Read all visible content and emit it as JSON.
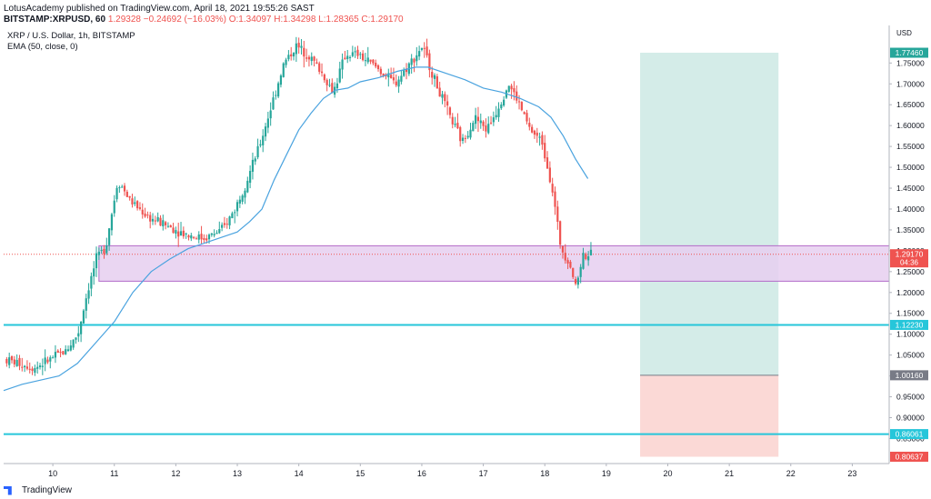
{
  "header": {
    "publisher_line": "LotusAcademy published on TradingView.com, April 18, 2021 19:55:26 SAST",
    "symbol": "BITSTAMP:XRPUSD, 60",
    "last": "1.29328",
    "change": "−0.24692 (−16.03%)",
    "ohlc": "O:1.34097 H:1.34298 L:1.28365 C:1.29170"
  },
  "legend": {
    "title": "XRP / U.S. Dollar, 1h, BITSTAMP",
    "indicator": "EMA (50, close, 0)"
  },
  "footer": {
    "brand": "TradingView"
  },
  "colors": {
    "up": "#26a69a",
    "down": "#ef5350",
    "ema": "#4aa3df",
    "support_line": "#26c6da",
    "zone_fill": "#e6cff0",
    "zone_border": "#b36bc8",
    "target_fill": "#d4ece8",
    "stop_fill": "#fbd9d6"
  },
  "chart_data": {
    "type": "candlestick",
    "title": "XRP / U.S. Dollar, 1h, BITSTAMP",
    "currency": "USD",
    "x_ticks": [
      "10",
      "11",
      "12",
      "13",
      "14",
      "15",
      "16",
      "17",
      "18",
      "19",
      "20",
      "21",
      "22",
      "23"
    ],
    "y_ticks": [
      "1.75000",
      "1.70000",
      "1.65000",
      "1.60000",
      "1.55000",
      "1.50000",
      "1.45000",
      "1.40000",
      "1.35000",
      "1.30000",
      "1.25000",
      "1.20000",
      "1.15000",
      "1.10000",
      "1.05000",
      "1.00000",
      "0.95000",
      "0.90000",
      "0.85000"
    ],
    "ylim": [
      0.79,
      1.84
    ],
    "xlim_days": [
      9.2,
      23.6
    ],
    "price_path": [
      [
        9.25,
        1.04
      ],
      [
        9.5,
        1.03
      ],
      [
        9.75,
        1.02
      ],
      [
        10.0,
        1.04
      ],
      [
        10.25,
        1.06
      ],
      [
        10.45,
        1.1
      ],
      [
        10.6,
        1.2
      ],
      [
        10.75,
        1.28
      ],
      [
        10.9,
        1.31
      ],
      [
        11.1,
        1.47
      ],
      [
        11.3,
        1.42
      ],
      [
        11.6,
        1.38
      ],
      [
        11.9,
        1.36
      ],
      [
        12.2,
        1.34
      ],
      [
        12.5,
        1.33
      ],
      [
        12.8,
        1.35
      ],
      [
        13.0,
        1.4
      ],
      [
        13.2,
        1.47
      ],
      [
        13.4,
        1.55
      ],
      [
        13.6,
        1.65
      ],
      [
        13.8,
        1.75
      ],
      [
        14.0,
        1.79
      ],
      [
        14.2,
        1.77
      ],
      [
        14.4,
        1.73
      ],
      [
        14.6,
        1.68
      ],
      [
        14.8,
        1.77
      ],
      [
        15.0,
        1.77
      ],
      [
        15.3,
        1.74
      ],
      [
        15.6,
        1.7
      ],
      [
        15.85,
        1.75
      ],
      [
        16.05,
        1.79
      ],
      [
        16.3,
        1.69
      ],
      [
        16.5,
        1.62
      ],
      [
        16.7,
        1.56
      ],
      [
        16.9,
        1.62
      ],
      [
        17.1,
        1.59
      ],
      [
        17.3,
        1.65
      ],
      [
        17.45,
        1.7
      ],
      [
        17.6,
        1.66
      ],
      [
        17.8,
        1.59
      ],
      [
        18.0,
        1.56
      ],
      [
        18.15,
        1.46
      ],
      [
        18.3,
        1.31
      ],
      [
        18.45,
        1.27
      ],
      [
        18.55,
        1.21
      ],
      [
        18.65,
        1.29
      ],
      [
        18.75,
        1.29
      ]
    ],
    "ema_50": [
      [
        9.2,
        0.965
      ],
      [
        9.5,
        0.98
      ],
      [
        9.8,
        0.99
      ],
      [
        10.1,
        1.0
      ],
      [
        10.4,
        1.03
      ],
      [
        10.7,
        1.08
      ],
      [
        11.0,
        1.13
      ],
      [
        11.3,
        1.2
      ],
      [
        11.6,
        1.25
      ],
      [
        11.9,
        1.28
      ],
      [
        12.2,
        1.305
      ],
      [
        12.5,
        1.32
      ],
      [
        12.8,
        1.335
      ],
      [
        13.0,
        1.345
      ],
      [
        13.2,
        1.37
      ],
      [
        13.4,
        1.4
      ],
      [
        13.6,
        1.47
      ],
      [
        13.8,
        1.53
      ],
      [
        14.0,
        1.59
      ],
      [
        14.2,
        1.63
      ],
      [
        14.4,
        1.665
      ],
      [
        14.6,
        1.685
      ],
      [
        14.8,
        1.69
      ],
      [
        15.0,
        1.705
      ],
      [
        15.3,
        1.715
      ],
      [
        15.6,
        1.73
      ],
      [
        15.9,
        1.74
      ],
      [
        16.1,
        1.74
      ],
      [
        16.4,
        1.725
      ],
      [
        16.7,
        1.71
      ],
      [
        17.0,
        1.69
      ],
      [
        17.3,
        1.68
      ],
      [
        17.6,
        1.665
      ],
      [
        17.9,
        1.645
      ],
      [
        18.1,
        1.62
      ],
      [
        18.3,
        1.575
      ],
      [
        18.5,
        1.52
      ],
      [
        18.7,
        1.473
      ]
    ],
    "annotations": {
      "supply_demand_zone": [
        1.227,
        1.312
      ],
      "support_lines": [
        1.1223,
        0.86061
      ],
      "position_entry": 1.0016,
      "position_target": 1.7746,
      "position_stop": 0.80637,
      "position_x_days": [
        19.55,
        21.8
      ]
    },
    "price_labels": [
      {
        "text": "1.77460",
        "kind": "target"
      },
      {
        "text": "1.29170",
        "kind": "last",
        "countdown": "04:36"
      },
      {
        "text": "1.12230",
        "kind": "support"
      },
      {
        "text": "1.00160",
        "kind": "entry"
      },
      {
        "text": "0.86061",
        "kind": "support"
      },
      {
        "text": "0.80637",
        "kind": "stop"
      }
    ]
  }
}
